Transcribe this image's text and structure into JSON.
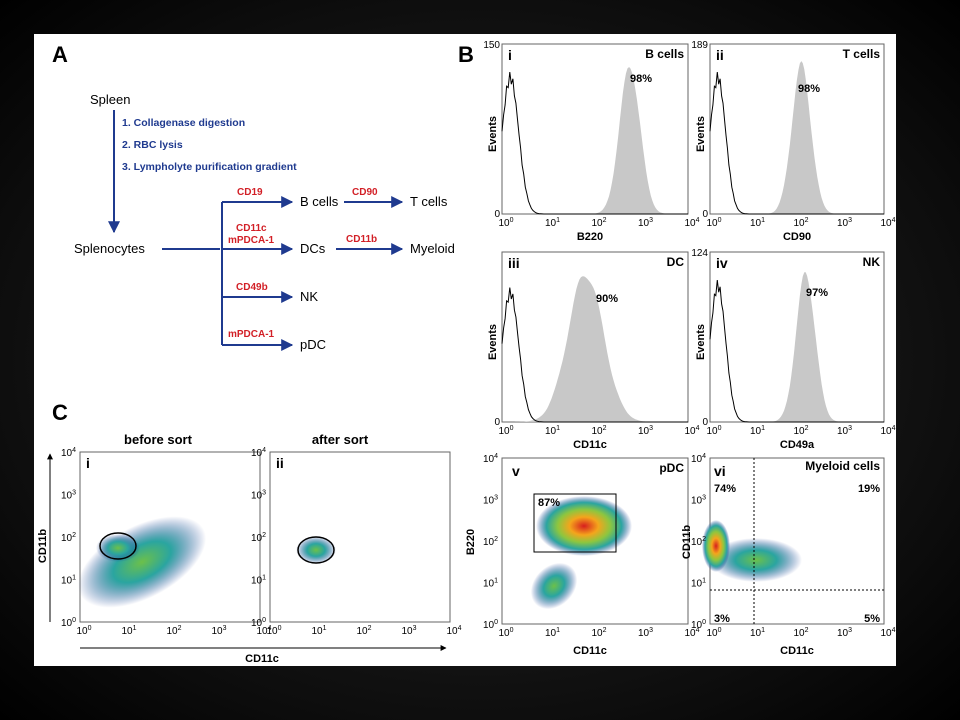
{
  "panels": {
    "A": {
      "letter": "A",
      "source": "Spleen",
      "steps": [
        "1. Collagenase digestion",
        "2. RBC lysis",
        "3. Lympholyte purification gradient"
      ],
      "intermediate": "Splenocytes",
      "branches": [
        {
          "marker": "CD19",
          "target": "B cells",
          "marker2": "CD90",
          "target2": "T cells"
        },
        {
          "marker": "CD11c",
          "marker_b": "mPDCA-1",
          "target": "DCs",
          "marker2": "CD11b",
          "target2": "Myeloid"
        },
        {
          "marker": "CD49b",
          "target": "NK"
        },
        {
          "marker": "mPDCA-1",
          "target": "pDC"
        }
      ]
    },
    "B": {
      "letter": "B",
      "histograms": [
        {
          "roman": "i",
          "title": "B cells",
          "ymax": "150",
          "ymin": "0",
          "percent": "98%",
          "xlabel": "B220",
          "ylabel": "Events",
          "peak_decade": 2.75
        },
        {
          "roman": "ii",
          "title": "T cells",
          "ymax": "189",
          "ymin": "0",
          "percent": "98%",
          "xlabel": "CD90",
          "ylabel": "Events",
          "peak_decade": 2.1
        },
        {
          "roman": "iii",
          "title": "DC",
          "ymax": "",
          "ymin": "0",
          "percent": "90%",
          "xlabel": "CD11c",
          "ylabel": "Events",
          "peak_decade": 1.8
        },
        {
          "roman": "iv",
          "title": "NK",
          "ymax": "124",
          "ymin": "0",
          "percent": "97%",
          "xlabel": "CD49a",
          "ylabel": "Events",
          "peak_decade": 2.2
        }
      ],
      "dotplots": [
        {
          "roman": "v",
          "title": "pDC",
          "xlabel": "CD11c",
          "ylabel": "B220",
          "gate_percent": "87%"
        },
        {
          "roman": "vi",
          "title": "Myeloid cells",
          "xlabel": "CD11c",
          "ylabel": "CD11b",
          "quadrants": {
            "tl": "74%",
            "tr": "19%",
            "bl": "3%",
            "br": "5%"
          }
        }
      ]
    },
    "C": {
      "letter": "C",
      "plots": [
        {
          "roman": "i",
          "title": "before sort"
        },
        {
          "roman": "ii",
          "title": "after sort"
        }
      ],
      "xlabel": "CD11c",
      "ylabel": "CD11b"
    }
  },
  "axis": {
    "log_ticks": [
      {
        "base": "10",
        "exp": "0"
      },
      {
        "base": "10",
        "exp": "1"
      },
      {
        "base": "10",
        "exp": "2"
      },
      {
        "base": "10",
        "exp": "3"
      },
      {
        "base": "10",
        "exp": "4"
      }
    ]
  },
  "colors": {
    "arrow_blue": "#1f3a8f",
    "marker_red": "#d21f26",
    "histogram_fill": "#c8c8c8"
  }
}
